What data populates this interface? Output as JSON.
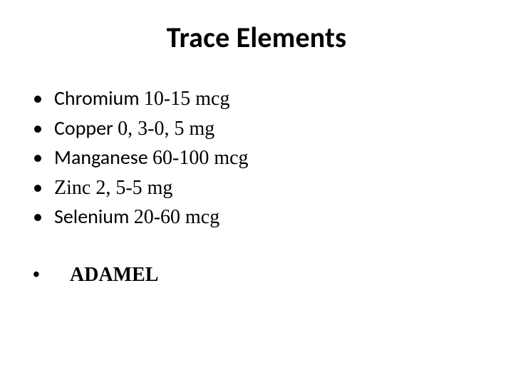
{
  "slide": {
    "title": "Trace Elements",
    "background_color": "#ffffff",
    "text_color": "#000000",
    "title_fontsize_pt": 40,
    "body_fontsize_pt": 28,
    "bullets": [
      {
        "prefix": "Chromium ",
        "value": "10-15 mcg"
      },
      {
        "prefix": "Copper  ",
        "value": "0, 3-0, 5 mg"
      },
      {
        "prefix": "Manganese ",
        "value": "60-100 mcg"
      },
      {
        "prefix": "Zinc ",
        "value": "2, 5-5 mg"
      },
      {
        "prefix": "Selenium ",
        "value": "20-60 mcg"
      }
    ],
    "final_item": "ADAMEL"
  }
}
